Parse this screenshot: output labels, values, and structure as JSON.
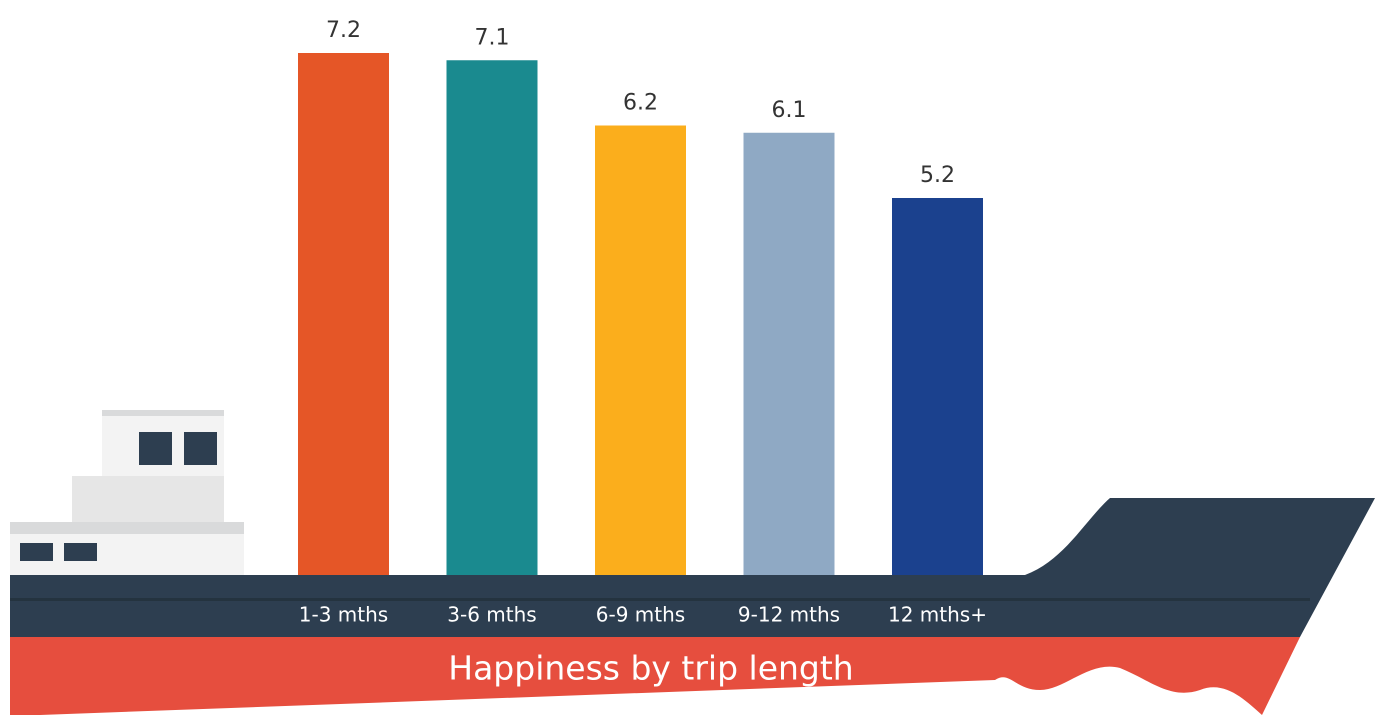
{
  "chart_data": {
    "type": "bar",
    "title": "Happiness by trip length",
    "categories": [
      "1-3 mths",
      "3-6 mths",
      "6-9 mths",
      "9-12 mths",
      "12 mths+"
    ],
    "values": [
      7.2,
      7.1,
      6.2,
      6.1,
      5.2
    ],
    "colors": [
      "#e55627",
      "#1a8a8f",
      "#fbae1c",
      "#8fa9c4",
      "#1b418e"
    ]
  }
}
